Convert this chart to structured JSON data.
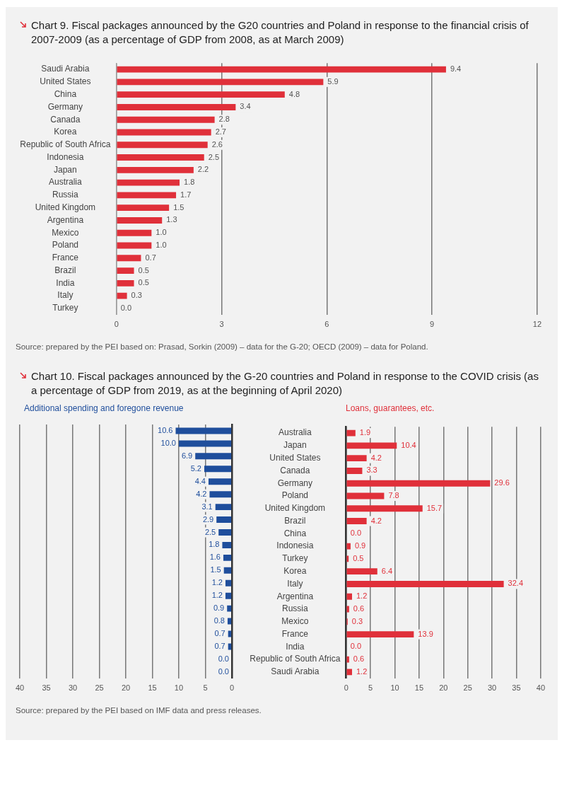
{
  "chart_data": [
    {
      "type": "bar",
      "orientation": "horizontal",
      "title": "Chart 9. Fiscal packages announced by the G20 countries and Poland in response to the financial crisis of 2007-2009 (as a percentage of GDP from 2008, as at March 2009)",
      "categories": [
        "Saudi Arabia",
        "United States",
        "China",
        "Germany",
        "Canada",
        "Korea",
        "Republic of South Africa",
        "Indonesia",
        "Japan",
        "Australia",
        "Russia",
        "United Kingdom",
        "Argentina",
        "Mexico",
        "Poland",
        "France",
        "Brazil",
        "India",
        "Italy",
        "Turkey"
      ],
      "series": [
        {
          "color": "#e0303a",
          "values": [
            9.4,
            5.9,
            4.8,
            3.4,
            2.8,
            2.7,
            2.6,
            2.5,
            2.2,
            1.8,
            1.7,
            1.5,
            1.3,
            1.0,
            1.0,
            0.7,
            0.5,
            0.5,
            0.3,
            0.0
          ],
          "value_labels": [
            "9.4",
            "5.9",
            "4.8",
            "3.4",
            "2.8",
            "2.7",
            "2.6",
            "2.5",
            "2.2",
            "1.8",
            "1.7",
            "1.5",
            "1.3",
            "1.0",
            "1.0",
            "0.7",
            "0.5",
            "0.5",
            "0.3",
            "0.0"
          ]
        }
      ],
      "xlim": [
        0,
        12
      ],
      "xticks": [
        0,
        3,
        6,
        9,
        12
      ],
      "grid": "x",
      "annotations": [
        "Source: prepared by the PEI based on: Prasad, Sorkin (2009) – data for the G-20; OECD (2009) – data for Poland."
      ]
    },
    {
      "type": "bar",
      "orientation": "horizontal",
      "title": "Chart 10. Fiscal packages announced by the G-20 countries and Poland in response to the COVID crisis (as a percentage of GDP from 2019, as at the beginning of April 2020)",
      "categories": [
        null,
        null,
        null,
        null,
        null,
        null,
        null,
        null,
        null,
        null,
        null,
        null,
        null,
        null,
        null,
        null,
        null,
        null,
        null,
        null
      ],
      "series": [
        {
          "name": "Additional spending and foregone revenue",
          "color": "#1f4e9c",
          "values": [
            10.6,
            10.0,
            6.9,
            5.2,
            4.4,
            4.2,
            3.1,
            2.9,
            2.5,
            1.8,
            1.6,
            1.5,
            1.2,
            1.2,
            0.9,
            0.8,
            0.7,
            0.7,
            0.0,
            0.0
          ],
          "value_labels": [
            "10.6",
            "10.0",
            "6.9",
            "5.2",
            "4.4",
            "4.2",
            "3.1",
            "2.9",
            "2.5",
            "1.8",
            "1.6",
            "1.5",
            "1.2",
            "1.2",
            "0.9",
            "0.8",
            "0.7",
            "0.7",
            "0.0",
            "0.0"
          ]
        }
      ],
      "xlim": [
        40,
        0
      ],
      "xticks": [
        40,
        35,
        30,
        25,
        20,
        15,
        10,
        5,
        0
      ],
      "grid": "x"
    },
    {
      "type": "bar",
      "orientation": "horizontal",
      "categories": [
        "Australia",
        "Japan",
        "United States",
        "Canada",
        "Germany",
        "Poland",
        "United Kingdom",
        "Brazil",
        "China",
        "Indonesia",
        "Turkey",
        "Korea",
        "Italy",
        "Argentina",
        "Russia",
        "Mexico",
        "France",
        "India",
        "Republic of South Africa",
        "Saudi Arabia"
      ],
      "series": [
        {
          "name": "Loans, guarantees, etc.",
          "color": "#e0303a",
          "values": [
            1.9,
            10.4,
            4.2,
            3.3,
            29.6,
            7.8,
            15.7,
            4.2,
            0.0,
            0.9,
            0.5,
            6.4,
            32.4,
            1.2,
            0.6,
            0.3,
            13.9,
            0.0,
            0.6,
            1.2
          ],
          "value_labels": [
            "1.9",
            "10.4",
            "4.2",
            "3.3",
            "29.6",
            "7.8",
            "15.7",
            "4.2",
            "0.0",
            "0.9",
            "0.5",
            "6.4",
            "32.4",
            "1.2",
            "0.6",
            "0.3",
            "13.9",
            "0.0",
            "0.6",
            "1.2"
          ]
        }
      ],
      "xlim": [
        0,
        40
      ],
      "xticks": [
        0,
        5,
        10,
        15,
        20,
        25,
        30,
        35,
        40
      ],
      "grid": "x",
      "annotations": [
        "Source: prepared by the PEI based on IMF data and press releases."
      ]
    }
  ]
}
